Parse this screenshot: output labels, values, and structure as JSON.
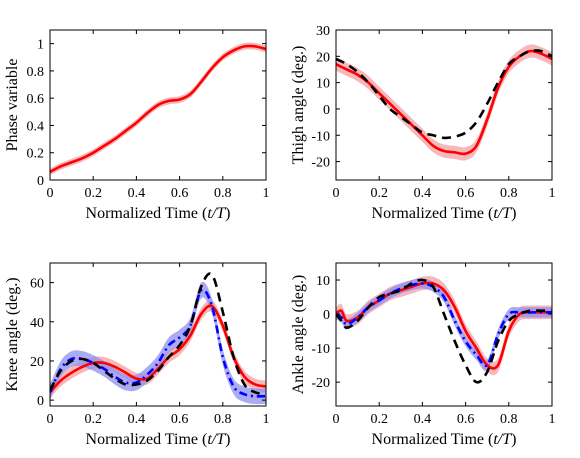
{
  "chart_data": [
    {
      "type": "line",
      "ylabel": "Phase variable",
      "xlabel": "Normalized Time (t/T)",
      "xlim": [
        0,
        1
      ],
      "ylim": [
        0,
        1.1
      ],
      "xticks": [
        "0",
        "0.2",
        "0.4",
        "0.6",
        "0.8",
        "1"
      ],
      "yticks": [
        "0",
        "0.2",
        "0.4",
        "0.6",
        "0.8",
        "1"
      ],
      "x": [
        0,
        0.05,
        0.1,
        0.15,
        0.2,
        0.25,
        0.3,
        0.35,
        0.4,
        0.45,
        0.5,
        0.55,
        0.6,
        0.65,
        0.7,
        0.75,
        0.8,
        0.85,
        0.9,
        0.95,
        1.0
      ],
      "series": [
        {
          "style": "solid",
          "color": "#ff0000",
          "band_color": "#f4a0a6",
          "band_halfwidth": 0.025,
          "values": [
            0.06,
            0.1,
            0.13,
            0.16,
            0.2,
            0.25,
            0.3,
            0.36,
            0.42,
            0.49,
            0.55,
            0.58,
            0.59,
            0.63,
            0.72,
            0.82,
            0.9,
            0.95,
            0.98,
            0.98,
            0.96
          ]
        }
      ]
    },
    {
      "type": "line",
      "ylabel": "Thigh angle (deg.)",
      "xlabel": "Normalized Time (t/T)",
      "xlim": [
        0,
        1
      ],
      "ylim": [
        -27,
        30
      ],
      "xticks": [
        "0",
        "0.2",
        "0.4",
        "0.6",
        "0.8",
        "1"
      ],
      "yticks": [
        "-20",
        "-10",
        "0",
        "10",
        "20",
        "30"
      ],
      "x": [
        0,
        0.05,
        0.1,
        0.15,
        0.2,
        0.25,
        0.3,
        0.35,
        0.4,
        0.45,
        0.5,
        0.55,
        0.6,
        0.65,
        0.7,
        0.75,
        0.8,
        0.85,
        0.9,
        0.95,
        1.0
      ],
      "series": [
        {
          "style": "solid",
          "color": "#ff0000",
          "band_color": "#f4a0a6",
          "band_halfwidth": 2.5,
          "values": [
            17,
            15,
            13,
            10,
            6,
            2,
            -2,
            -6,
            -10,
            -14,
            -16,
            -16.5,
            -17,
            -14,
            -4,
            8,
            16,
            20,
            22,
            21,
            19
          ]
        },
        {
          "style": "dashed",
          "color": "#000000",
          "values": [
            19,
            17,
            14,
            10,
            5,
            0,
            -3,
            -6,
            -9,
            -10,
            -11,
            -10.5,
            -9,
            -5,
            2,
            10,
            17,
            20,
            22,
            22,
            20
          ]
        }
      ]
    },
    {
      "type": "line",
      "ylabel": "Knee angle (deg.)",
      "xlabel": "Normalized Time (t/T)",
      "xlim": [
        0,
        1
      ],
      "ylim": [
        -3,
        70
      ],
      "xticks": [
        "0",
        "0.2",
        "0.4",
        "0.6",
        "0.8",
        "1"
      ],
      "yticks": [
        "0",
        "20",
        "40",
        "60"
      ],
      "x": [
        0,
        0.05,
        0.1,
        0.15,
        0.2,
        0.25,
        0.3,
        0.35,
        0.4,
        0.45,
        0.5,
        0.55,
        0.6,
        0.65,
        0.7,
        0.75,
        0.8,
        0.85,
        0.9,
        0.95,
        1.0
      ],
      "series": [
        {
          "style": "solid",
          "color": "#ff0000",
          "band_color": "#f4a0a6",
          "band_halfwidth": 3,
          "values": [
            4,
            10,
            14,
            17,
            19,
            19,
            17,
            14,
            11,
            11,
            16,
            22,
            26,
            33,
            44,
            48,
            38,
            22,
            12,
            8,
            7
          ]
        },
        {
          "style": "dashdot",
          "color": "#0000ff",
          "band_color": "#8f8ff0",
          "band_halfwidth": 4,
          "values": [
            4,
            16,
            21,
            21,
            19,
            16,
            12,
            9,
            9,
            13,
            19,
            28,
            32,
            38,
            56,
            48,
            22,
            7,
            3,
            2,
            2
          ]
        },
        {
          "style": "dashed",
          "color": "#000000",
          "values": [
            5,
            15,
            20,
            21,
            19,
            15,
            11,
            8,
            8,
            10,
            15,
            22,
            28,
            38,
            58,
            64,
            45,
            22,
            8,
            4,
            3
          ]
        }
      ]
    },
    {
      "type": "line",
      "ylabel": "Ankle angle (deg.)",
      "xlabel": "Normalized Time (t/T)",
      "xlim": [
        0,
        1
      ],
      "ylim": [
        -27,
        15
      ],
      "xticks": [
        "0",
        "0.2",
        "0.4",
        "0.6",
        "0.8",
        "1"
      ],
      "yticks": [
        "-20",
        "-10",
        "0",
        "10"
      ],
      "x": [
        0,
        0.025,
        0.05,
        0.1,
        0.15,
        0.2,
        0.25,
        0.3,
        0.35,
        0.4,
        0.45,
        0.5,
        0.55,
        0.6,
        0.65,
        0.7,
        0.75,
        0.8,
        0.85,
        0.9,
        0.95,
        1.0
      ],
      "series": [
        {
          "style": "solid",
          "color": "#ff0000",
          "band_color": "#f4a0a6",
          "band_halfwidth": 2,
          "values": [
            0,
            1,
            -2,
            -1,
            2,
            4,
            6,
            7,
            8,
            9,
            9,
            7,
            2,
            -5,
            -10,
            -15,
            -15,
            -5,
            0,
            0.5,
            0.5,
            0.5
          ]
        },
        {
          "style": "dashdot",
          "color": "#0000ff",
          "band_color": "#8f8ff0",
          "band_halfwidth": 1.5,
          "values": [
            0,
            -1,
            -3,
            -1,
            2,
            4,
            6,
            7.5,
            8.5,
            9,
            8,
            5,
            -2,
            -8,
            -12,
            -15,
            -6,
            0,
            0.5,
            0.5,
            0.5,
            0.5
          ]
        },
        {
          "style": "dashed",
          "color": "#000000",
          "values": [
            0,
            -2,
            -4,
            -2,
            2,
            5,
            6,
            7,
            9,
            10,
            8,
            0,
            -8,
            -15,
            -20,
            -17,
            -8,
            -2,
            0,
            1,
            1,
            1
          ]
        }
      ]
    }
  ]
}
